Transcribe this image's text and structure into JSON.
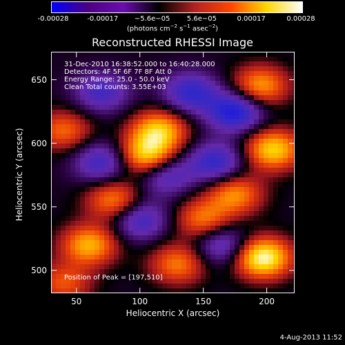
{
  "colorbar": {
    "ticks": [
      "-0.00028",
      "-0.00017",
      "−5.6e−05",
      "5.6e−05",
      "0.00017",
      "0.00028"
    ],
    "unit_text": "(photons cm",
    "unit_exp1": "−2",
    "unit_mid1": " s",
    "unit_exp2": "−1",
    "unit_mid2": " asec",
    "unit_exp3": "−2",
    "unit_end": ")",
    "colors": [
      "#0000ff",
      "#4b0082",
      "#6a0dad",
      "#000000",
      "#b22222",
      "#ff4500",
      "#ffd700",
      "#ffffff"
    ]
  },
  "chart_data": {
    "type": "heatmap",
    "title": "Reconstructed RHESSI Image",
    "xlabel": "Heliocentric X (arcsec)",
    "ylabel": "Heliocentric Y (arcsec)",
    "xlim": [
      30,
      222
    ],
    "ylim": [
      482,
      672
    ],
    "xticks": [
      50,
      100,
      150,
      200
    ],
    "yticks": [
      500,
      550,
      600,
      650
    ],
    "annotations": [
      "31-Dec-2010 16:38:52.000 to 16:40:28.000",
      "Detectors: 4F 5F 6F 7F 8F  Att 0",
      "Energy Range: 25.0 - 50.0 keV",
      "Clean    Total counts: 3.55E+03"
    ],
    "peak_text": "Position of Peak = [197,510]",
    "sources": [
      {
        "x": 115,
        "y": 610,
        "v": 0.75
      },
      {
        "x": 105,
        "y": 590,
        "v": 0.8
      },
      {
        "x": 195,
        "y": 645,
        "v": 0.65
      },
      {
        "x": 80,
        "y": 555,
        "v": 0.6
      },
      {
        "x": 205,
        "y": 595,
        "v": 0.8
      },
      {
        "x": 60,
        "y": 520,
        "v": 0.7
      },
      {
        "x": 130,
        "y": 505,
        "v": 0.55
      },
      {
        "x": 197,
        "y": 510,
        "v": 1.0
      },
      {
        "x": 175,
        "y": 560,
        "v": 0.6
      },
      {
        "x": 150,
        "y": 540,
        "v": 0.55
      },
      {
        "x": 40,
        "y": 610,
        "v": 0.5
      },
      {
        "x": 40,
        "y": 490,
        "v": 0.45
      },
      {
        "x": 140,
        "y": 640,
        "v": -0.6
      },
      {
        "x": 175,
        "y": 625,
        "v": -0.75
      },
      {
        "x": 120,
        "y": 575,
        "v": -0.5
      },
      {
        "x": 70,
        "y": 585,
        "v": -0.55
      },
      {
        "x": 160,
        "y": 585,
        "v": -0.6
      },
      {
        "x": 100,
        "y": 540,
        "v": -0.55
      },
      {
        "x": 165,
        "y": 520,
        "v": -0.5
      },
      {
        "x": 70,
        "y": 640,
        "v": -0.5
      }
    ]
  },
  "footer": "4-Aug-2013 11:52"
}
